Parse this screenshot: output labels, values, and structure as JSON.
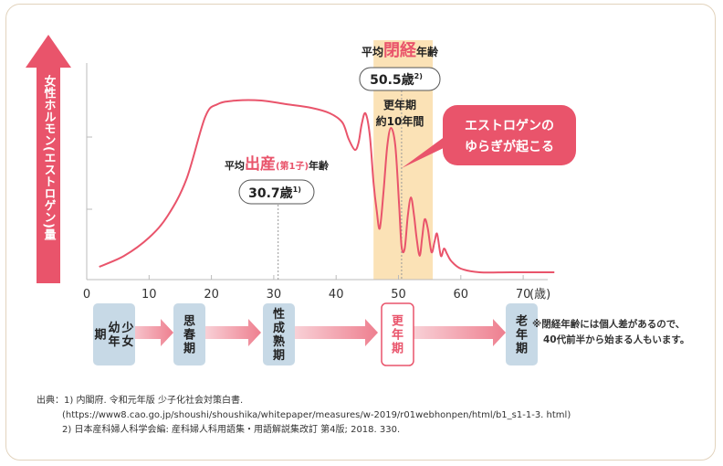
{
  "chart_data": {
    "type": "line",
    "ylabel": "女性ホルモン(エストロゲン)量",
    "xlabel": "(歳)",
    "x_ticks": [
      "0",
      "10",
      "20",
      "30",
      "40",
      "50",
      "60",
      "70"
    ],
    "xlim": [
      0,
      75
    ],
    "series": [
      {
        "values": [
          [
            2,
            4
          ],
          [
            6,
            10
          ],
          [
            10,
            20
          ],
          [
            13,
            32
          ],
          [
            16,
            52
          ],
          [
            19,
            86
          ],
          [
            21,
            93
          ],
          [
            24,
            95
          ],
          [
            28,
            95
          ],
          [
            32,
            93
          ],
          [
            36,
            91
          ],
          [
            39,
            88
          ],
          [
            41,
            83
          ],
          [
            42,
            74
          ],
          [
            43,
            68
          ],
          [
            43.6,
            72
          ],
          [
            44.1,
            82
          ],
          [
            44.7,
            88
          ],
          [
            45.4,
            76
          ],
          [
            46.0,
            50
          ],
          [
            46.5,
            35
          ],
          [
            47.0,
            25
          ],
          [
            47.6,
            45
          ],
          [
            48.2,
            70
          ],
          [
            48.8,
            80
          ],
          [
            49.5,
            70
          ],
          [
            50.1,
            38
          ],
          [
            50.5,
            15
          ],
          [
            51.0,
            14
          ],
          [
            51.5,
            32
          ],
          [
            52.0,
            42
          ],
          [
            52.5,
            32
          ],
          [
            52.9,
            20
          ],
          [
            53.4,
            10
          ],
          [
            53.8,
            20
          ],
          [
            54.2,
            30
          ],
          [
            54.7,
            25
          ],
          [
            55.3,
            12
          ],
          [
            55.8,
            18
          ],
          [
            56.2,
            22
          ],
          [
            56.8,
            10
          ],
          [
            57.3,
            14
          ],
          [
            57.8,
            11
          ],
          [
            58.5,
            7
          ],
          [
            60,
            3
          ],
          [
            63,
            1
          ],
          [
            68,
            1
          ],
          [
            75,
            1
          ]
        ]
      }
    ],
    "highlight_band": {
      "x_range": [
        46,
        55.5
      ],
      "label_line1": "更年期",
      "label_line2": "約10年間"
    },
    "annotations": {
      "birth": {
        "prefix": "平均",
        "highlight": "出産",
        "paren": "(第1子)",
        "suffix": "年齢",
        "value": "30.7歳",
        "sup": "1)",
        "x": 30.7
      },
      "menopause": {
        "prefix": "平均",
        "highlight": "閉経",
        "suffix": "年齢",
        "value": "50.5歳",
        "sup": "2)",
        "x": 50.5
      },
      "callout_line1": "エストロゲンの",
      "callout_line2": "ゆらぎが起こる"
    }
  },
  "stages": [
    {
      "lines": [
        "少女",
        "幼年",
        "期"
      ],
      "style": "blue"
    },
    {
      "lines": [
        "思春期"
      ],
      "style": "blue"
    },
    {
      "lines": [
        "性成熟期"
      ],
      "style": "blue"
    },
    {
      "lines": [
        "更年期"
      ],
      "style": "red"
    },
    {
      "lines": [
        "老年期"
      ],
      "style": "blue"
    }
  ],
  "note_line1": "※閉経年齢には個人差があるので、",
  "note_line2": "40代前半から始まる人もいます。",
  "sources": {
    "line1": "出典：1) 内閣府. 令和元年版 少子化社会対策白書.",
    "line2": "(https://www8.cao.go.jp/shoushi/shoushika/whitepaper/measures/w-2019/r01webhonpen/html/b1_s1-1-3. html)",
    "line3": "2) 日本産科婦人科学会編: 産科婦人科用語集・用語解説集改訂 第4版; 2018. 330."
  },
  "colors": {
    "pink": "#e9546b",
    "band": "#fbe2b6",
    "stage_blue": "#c7d9e6",
    "arrow_light": "#f4bcc4"
  }
}
